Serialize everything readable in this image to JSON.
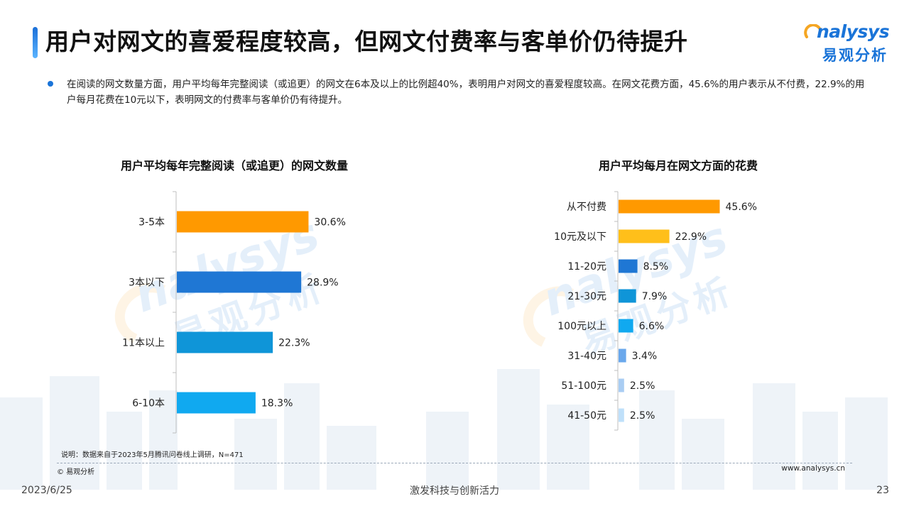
{
  "title": "用户对网文的喜爱程度较高，但网文付费率与客单价仍待提升",
  "logo": {
    "en": "nalysys",
    "cn": "易观分析"
  },
  "summary": "在阅读的网文数量方面，用户平均每年完整阅读（或追更）的网文在6本及以上的比例超40%，表明用户对网文的喜爱程度较高。在网文花费方面，45.6%的用户表示从不付费，22.9%的用户每月花费在10元以下，表明网文的付费率与客单价仍有待提升。",
  "watermark": {
    "en": "nalysys",
    "cn": "易观分析"
  },
  "chart_data": [
    {
      "type": "bar",
      "orientation": "horizontal",
      "title": "用户平均每年完整阅读（或追更）的网文数量",
      "categories": [
        "3-5本",
        "3本以下",
        "11本以上",
        "6-10本"
      ],
      "values": [
        30.6,
        28.9,
        22.3,
        18.3
      ],
      "labels": [
        "30.6%",
        "28.9%",
        "22.3%",
        "18.3%"
      ],
      "colors": [
        "#ff9900",
        "#1f77d4",
        "#0f95d8",
        "#10a9f0"
      ],
      "xlim": [
        0,
        50
      ]
    },
    {
      "type": "bar",
      "orientation": "horizontal",
      "title": "用户平均每月在网文方面的花费",
      "categories": [
        "从不付费",
        "10元及以下",
        "11-20元",
        "21-30元",
        "100元以上",
        "31-40元",
        "51-100元",
        "41-50元"
      ],
      "values": [
        45.6,
        22.9,
        8.5,
        7.9,
        6.6,
        3.4,
        2.5,
        2.5
      ],
      "labels": [
        "45.6%",
        "22.9%",
        "8.5%",
        "7.9%",
        "6.6%",
        "3.4%",
        "2.5%",
        "2.5%"
      ],
      "colors": [
        "#ff9900",
        "#ffbf1a",
        "#1f77d4",
        "#0f95d8",
        "#10a9f0",
        "#6aa8ec",
        "#a9cdf3",
        "#bfe0fa"
      ],
      "xlim": [
        0,
        80
      ]
    }
  ],
  "note": "说明：数据来自于2023年5月腾讯问卷线上调研，N=471",
  "copyright": "© 易观分析",
  "website": "www.analysys.cn",
  "footer": {
    "date": "2023/6/25",
    "slogan": "激发科技与创新活力",
    "page": "23"
  }
}
